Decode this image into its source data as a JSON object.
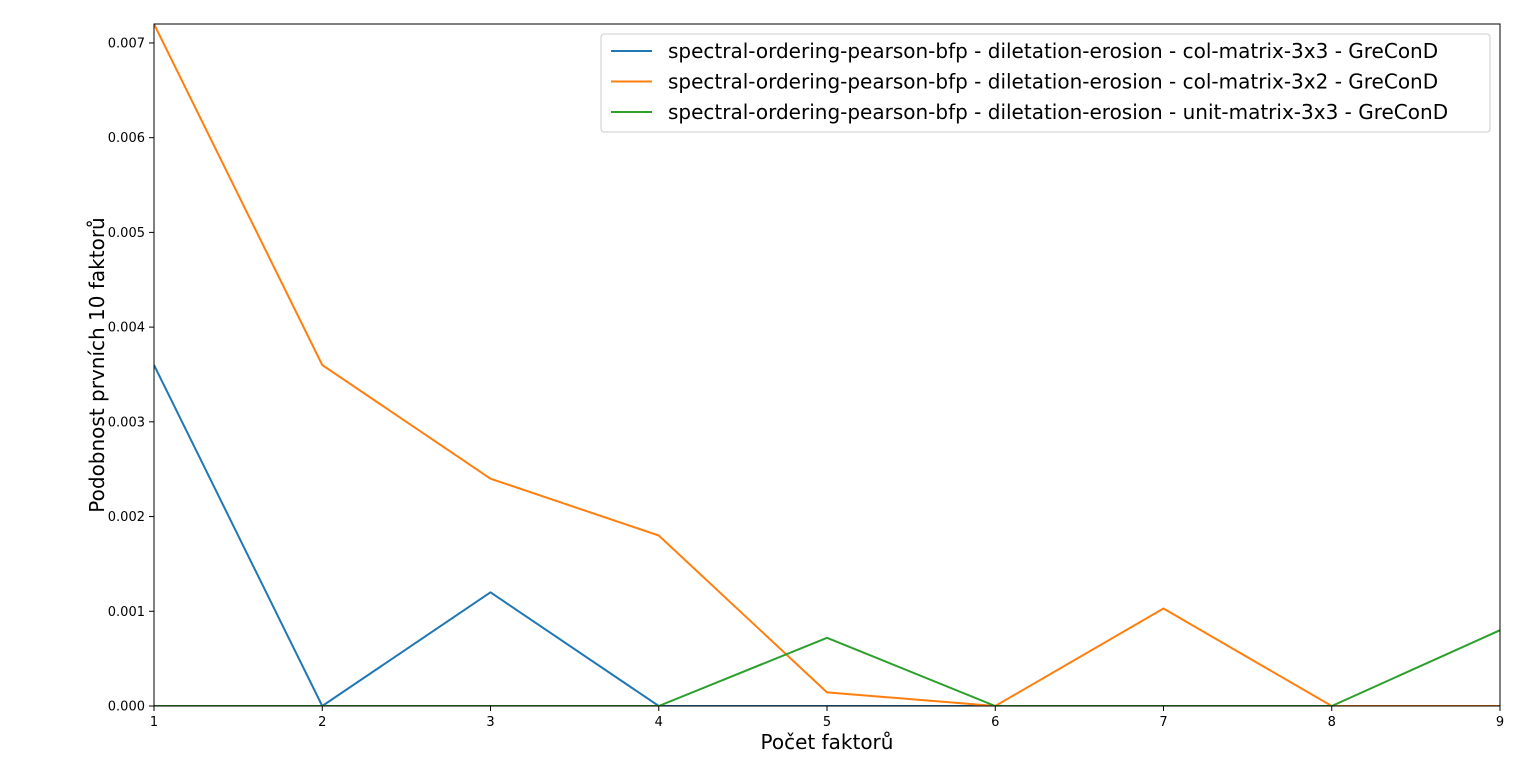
{
  "chart_data": {
    "type": "line",
    "title": "",
    "xlabel": "Počet faktorů",
    "ylabel": "Podobnost prvních 10 faktorů",
    "xlim": [
      1,
      9
    ],
    "ylim": [
      0,
      0.0072
    ],
    "xticks": [
      "1",
      "2",
      "3",
      "4",
      "5",
      "6",
      "7",
      "8",
      "9"
    ],
    "yticks": [
      "0.000",
      "0.001",
      "0.002",
      "0.003",
      "0.004",
      "0.005",
      "0.006",
      "0.007"
    ],
    "grid": false,
    "legend_position": "top-right",
    "x": [
      1,
      2,
      3,
      4,
      5,
      6,
      7,
      8,
      9
    ],
    "series": [
      {
        "name": "spectral-ordering-pearson-bfp - diletation-erosion - col-matrix-3x3 - GreConD",
        "color": "#1f77b4",
        "values": [
          0.0036,
          0.0,
          0.0012,
          0.0,
          0.0,
          0.0,
          0.0,
          0.0,
          0.0
        ]
      },
      {
        "name": "spectral-ordering-pearson-bfp - diletation-erosion - col-matrix-3x2 - GreConD",
        "color": "#ff7f0e",
        "values": [
          0.0072,
          0.0036,
          0.0024,
          0.0018,
          0.000144,
          0.0,
          0.001029,
          0.0,
          0.0
        ]
      },
      {
        "name": "spectral-ordering-pearson-bfp - diletation-erosion - unit-matrix-3x3 - GreConD",
        "color": "#2ca02c",
        "values": [
          0.0,
          0.0,
          0.0,
          0.0,
          0.00072,
          0.0,
          0.0,
          0.0,
          0.0008
        ]
      }
    ]
  }
}
